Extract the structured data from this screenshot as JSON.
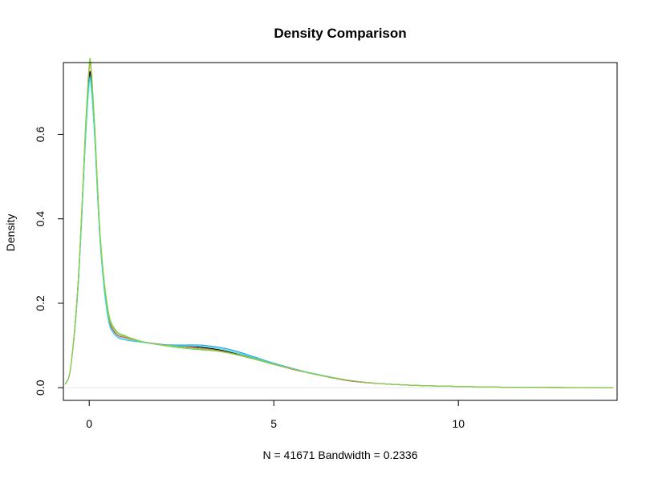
{
  "chart_data": {
    "type": "line",
    "title": "Density Comparison",
    "xlabel": "N = 41671   Bandwidth = 0.2336",
    "ylabel": "Density",
    "xlim": [
      -0.7,
      14.3
    ],
    "ylim": [
      -0.03,
      0.77
    ],
    "x_ticks": [
      0,
      5,
      10
    ],
    "y_ticks": [
      0.0,
      0.2,
      0.4,
      0.6
    ],
    "x_tick_labels": [
      "0",
      "5",
      "10"
    ],
    "y_tick_labels": [
      "0.0",
      "0.2",
      "0.4",
      "0.6"
    ],
    "grid": false,
    "legend": false,
    "x": [
      -0.65,
      -0.5,
      -0.3,
      -0.1,
      0.0,
      0.05,
      0.15,
      0.3,
      0.5,
      0.7,
      1.0,
      1.5,
      2.0,
      2.5,
      3.0,
      3.5,
      4.0,
      4.5,
      5.0,
      5.5,
      6.0,
      7.0,
      8.0,
      9.0,
      10.0,
      11.0,
      12.0,
      13.0,
      14.2
    ],
    "series": [
      {
        "color": "#000000",
        "values": [
          0.008,
          0.05,
          0.25,
          0.6,
          0.735,
          0.73,
          0.6,
          0.35,
          0.18,
          0.13,
          0.118,
          0.108,
          0.102,
          0.098,
          0.096,
          0.09,
          0.08,
          0.068,
          0.056,
          0.044,
          0.034,
          0.017,
          0.009,
          0.005,
          0.003,
          0.0015,
          0.0007,
          0.0003,
          0.0001
        ]
      },
      {
        "color": "#DF536B",
        "values": [
          0.008,
          0.05,
          0.25,
          0.61,
          0.755,
          0.75,
          0.61,
          0.35,
          0.18,
          0.13,
          0.118,
          0.108,
          0.102,
          0.098,
          0.094,
          0.088,
          0.078,
          0.067,
          0.055,
          0.044,
          0.034,
          0.017,
          0.009,
          0.005,
          0.003,
          0.0015,
          0.0007,
          0.0003,
          0.0001
        ]
      },
      {
        "color": "#2297E6",
        "values": [
          0.008,
          0.05,
          0.24,
          0.59,
          0.725,
          0.72,
          0.59,
          0.34,
          0.17,
          0.125,
          0.113,
          0.107,
          0.102,
          0.101,
          0.101,
          0.096,
          0.086,
          0.072,
          0.058,
          0.046,
          0.035,
          0.018,
          0.009,
          0.005,
          0.003,
          0.0015,
          0.0007,
          0.0003,
          0.0001
        ]
      },
      {
        "color": "#61D04F",
        "values": [
          0.008,
          0.05,
          0.25,
          0.62,
          0.765,
          0.76,
          0.62,
          0.36,
          0.19,
          0.138,
          0.122,
          0.108,
          0.1,
          0.094,
          0.09,
          0.086,
          0.078,
          0.067,
          0.055,
          0.045,
          0.034,
          0.018,
          0.009,
          0.005,
          0.003,
          0.0015,
          0.0007,
          0.0003,
          0.0001
        ]
      },
      {
        "color": "#28E2E5",
        "values": [
          0.008,
          0.05,
          0.24,
          0.59,
          0.72,
          0.715,
          0.59,
          0.34,
          0.172,
          0.126,
          0.114,
          0.107,
          0.101,
          0.099,
          0.098,
          0.093,
          0.083,
          0.07,
          0.057,
          0.045,
          0.035,
          0.018,
          0.009,
          0.005,
          0.003,
          0.0015,
          0.0007,
          0.0003,
          0.0001
        ]
      },
      {
        "color": "#9ACD32",
        "values": [
          0.008,
          0.05,
          0.25,
          0.615,
          0.76,
          0.755,
          0.615,
          0.355,
          0.185,
          0.135,
          0.12,
          0.108,
          0.101,
          0.096,
          0.092,
          0.087,
          0.079,
          0.068,
          0.056,
          0.045,
          0.034,
          0.018,
          0.009,
          0.005,
          0.003,
          0.0015,
          0.0007,
          0.0003,
          0.0001
        ]
      }
    ]
  }
}
